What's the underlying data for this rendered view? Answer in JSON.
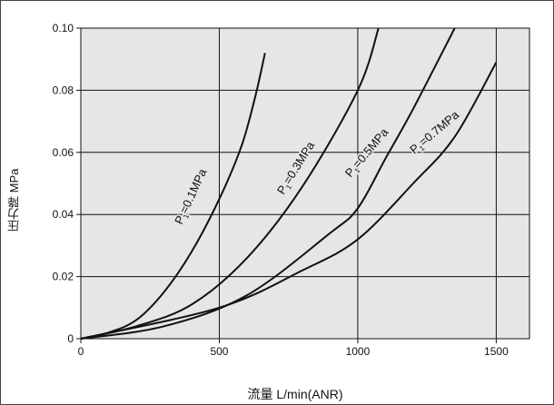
{
  "chart_data": {
    "type": "line",
    "xlabel": "流量 L/min(ANR)",
    "ylabel": "压力降 MPa",
    "xlim": [
      0,
      1620
    ],
    "ylim": [
      0,
      0.1
    ],
    "xticks": [
      0,
      500,
      1000,
      1500
    ],
    "yticks": [
      0,
      0.02,
      0.04,
      0.06,
      0.08,
      0.1
    ],
    "ytick_labels": [
      "0",
      "0.02",
      "0.04",
      "0.06",
      "0.08",
      "0.10"
    ],
    "xtick_labels": [
      "0",
      "500",
      "1000",
      "1500"
    ],
    "grid": true,
    "background": "#e6e6e6",
    "line_color": "#111111",
    "series": [
      {
        "name": "P1=0.1MPa",
        "points": [
          [
            0,
            0
          ],
          [
            100,
            0.002
          ],
          [
            200,
            0.006
          ],
          [
            300,
            0.015
          ],
          [
            400,
            0.028
          ],
          [
            500,
            0.045
          ],
          [
            580,
            0.062
          ],
          [
            630,
            0.078
          ],
          [
            665,
            0.092
          ]
        ]
      },
      {
        "name": "P1=0.3MPa",
        "points": [
          [
            0,
            0
          ],
          [
            200,
            0.004
          ],
          [
            400,
            0.011
          ],
          [
            600,
            0.026
          ],
          [
            800,
            0.049
          ],
          [
            1000,
            0.08
          ],
          [
            1075,
            0.1
          ]
        ]
      },
      {
        "name": "P1=0.5MPa",
        "points": [
          [
            0,
            0
          ],
          [
            300,
            0.004
          ],
          [
            600,
            0.014
          ],
          [
            900,
            0.034
          ],
          [
            1000,
            0.042
          ],
          [
            1100,
            0.058
          ],
          [
            1200,
            0.074
          ],
          [
            1350,
            0.1
          ]
        ]
      },
      {
        "name": "P1=0.7MPa",
        "points": [
          [
            0,
            0
          ],
          [
            500,
            0.01
          ],
          [
            800,
            0.022
          ],
          [
            1000,
            0.032
          ],
          [
            1200,
            0.05
          ],
          [
            1350,
            0.065
          ],
          [
            1500,
            0.089
          ]
        ]
      }
    ],
    "annotations": [
      {
        "base": "P",
        "sub": "1",
        "rest": "=0.1MPa"
      },
      {
        "base": "P",
        "sub": "1",
        "rest": "=0.3MPa"
      },
      {
        "base": "P",
        "sub": "1",
        "rest": "=0.5MPa"
      },
      {
        "base": "P",
        "sub": "1",
        "rest": "=0.7MPa"
      }
    ]
  }
}
